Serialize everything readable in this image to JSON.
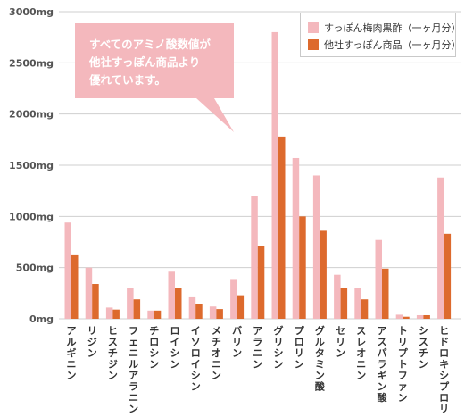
{
  "colors": {
    "series1": "#f4b8bd",
    "series2": "#dd6a2d",
    "callout_bg": "#f4b8bd",
    "grid": "#cfcfcf",
    "axis_text": "#555555",
    "category_text": "#333333"
  },
  "callout": {
    "lines": [
      "すべてのアミノ酸数値が",
      "他社すっぽん商品より",
      "優れています。"
    ]
  },
  "chart_data": {
    "type": "bar",
    "title": "",
    "xlabel": "",
    "ylabel": "",
    "ylim": [
      0,
      3000
    ],
    "y_ticks": [
      "0mg",
      "500mg",
      "1000mg",
      "1500mg",
      "2000mg",
      "2500mg",
      "3000mg"
    ],
    "y_tick_values": [
      0,
      500,
      1000,
      1500,
      2000,
      2500,
      3000
    ],
    "grid": true,
    "legend_position": "top-right",
    "categories": [
      "アルギニン",
      "リジン",
      "ヒスチジン",
      "フェニルアラニン",
      "チロシン",
      "ロイシン",
      "イソロイシン",
      "メチオニン",
      "バリン",
      "アラニン",
      "グリシン",
      "プロリン",
      "グルタミン酸",
      "セリン",
      "スレオニン",
      "アスパラギン酸",
      "トリプトファン",
      "シスチン",
      "ヒドロキシプロリン"
    ],
    "series": [
      {
        "name": "すっぽん梅肉黒酢（一ヶ月分）",
        "values": [
          940,
          500,
          110,
          300,
          80,
          460,
          210,
          120,
          380,
          1200,
          2800,
          1570,
          1400,
          430,
          300,
          770,
          40,
          35,
          1380
        ]
      },
      {
        "name": "他社すっぽん商品（一ヶ月分）",
        "values": [
          620,
          340,
          90,
          190,
          80,
          300,
          140,
          95,
          230,
          710,
          1780,
          1000,
          860,
          300,
          190,
          490,
          20,
          35,
          830
        ]
      }
    ]
  }
}
